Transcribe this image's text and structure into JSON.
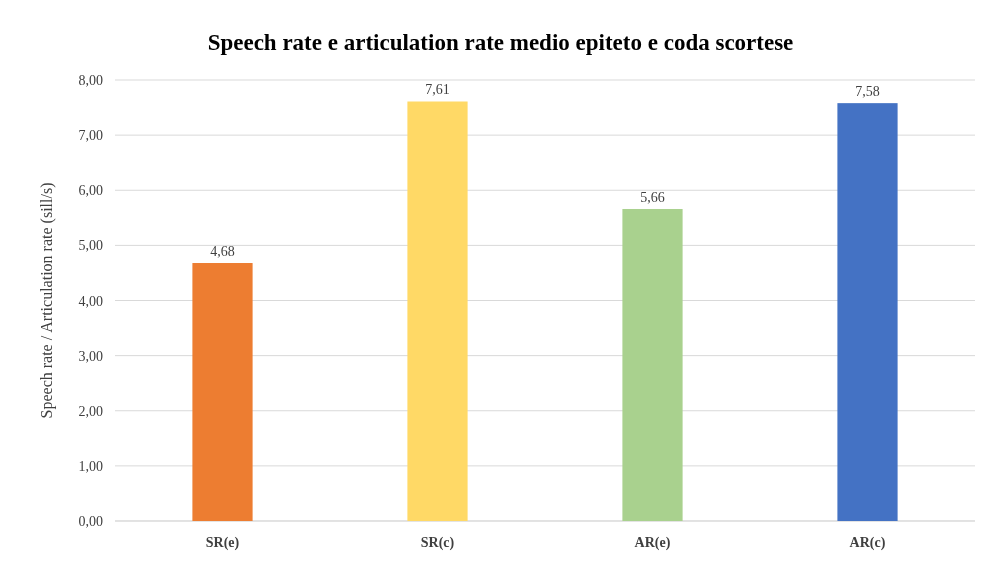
{
  "chart_data": {
    "type": "bar",
    "title": "Speech rate e articulation rate medio epiteto e coda scortese",
    "ylabel": "Speech rate / Articulation rate (sill/s)",
    "categories": [
      "SR(e)",
      "SR(c)",
      "AR(e)",
      "AR(c)"
    ],
    "values": [
      4.68,
      7.61,
      5.66,
      7.58
    ],
    "colors": [
      "#ed7d31",
      "#ffd966",
      "#a9d18e",
      "#4472c4"
    ],
    "value_labels": [
      "4,68",
      "7,61",
      "5,66",
      "7,58"
    ],
    "ylim": [
      0,
      8
    ],
    "yticks": [
      {
        "value": 0,
        "label": "0,00"
      },
      {
        "value": 1,
        "label": "1,00"
      },
      {
        "value": 2,
        "label": "2,00"
      },
      {
        "value": 3,
        "label": "3,00"
      },
      {
        "value": 4,
        "label": "4,00"
      },
      {
        "value": 5,
        "label": "5,00"
      },
      {
        "value": 6,
        "label": "6,00"
      },
      {
        "value": 7,
        "label": "7,00"
      },
      {
        "value": 8,
        "label": "8,00"
      }
    ],
    "grid": "y"
  }
}
